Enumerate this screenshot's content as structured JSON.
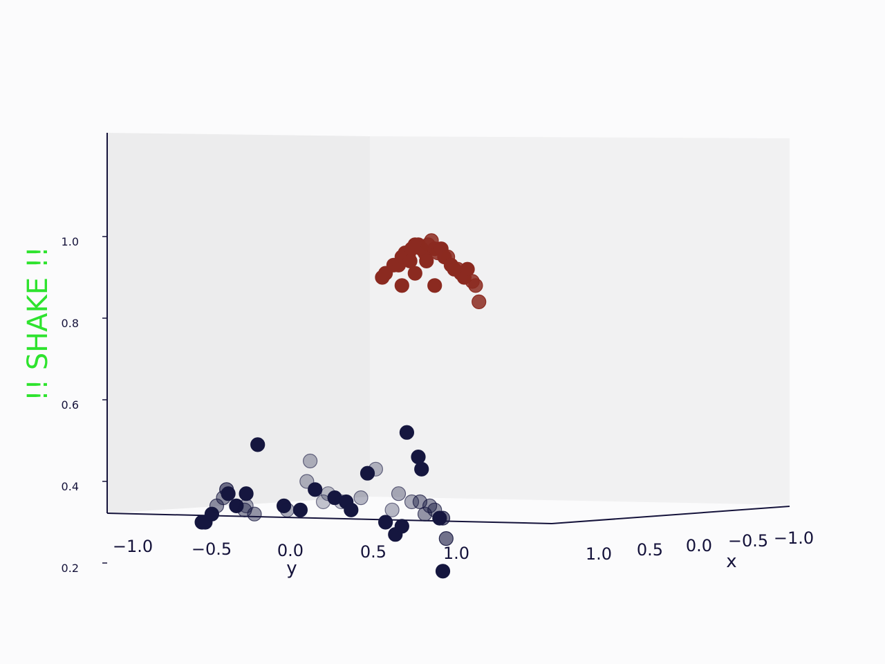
{
  "colors": {
    "background": "#fbfbfc",
    "pane": "#ededee",
    "axis": "#14123a",
    "label_overlay": "#2ee32e",
    "top_cluster": "#8b2a20",
    "bottom_cluster": "#15163f"
  },
  "chart_data": {
    "type": "scatter",
    "projection": "3d",
    "overlay_label": "!! SHAKE !!",
    "title": "",
    "xlabel": "x",
    "ylabel": "y",
    "zlabel": "",
    "x_ticks": [
      "1.0",
      "0.5",
      "0.0",
      "−0.5",
      "−1.0"
    ],
    "y_ticks": [
      "−1.0",
      "−0.5",
      "0.0",
      "0.5",
      "1.0"
    ],
    "z_ticks": [
      "0.2",
      "0.4",
      "0.6",
      "0.8",
      "1.0"
    ],
    "zlim": [
      0.12,
      1.05
    ],
    "grid": false,
    "series": [
      {
        "color": "#8b2a20",
        "points": [
          {
            "y": 0.05,
            "z": 0.9,
            "o": 1.0
          },
          {
            "y": 0.07,
            "z": 0.91,
            "o": 1.0
          },
          {
            "y": 0.12,
            "z": 0.93,
            "o": 1.0
          },
          {
            "y": 0.15,
            "z": 0.93,
            "o": 1.0
          },
          {
            "y": 0.17,
            "z": 0.95,
            "o": 1.0
          },
          {
            "y": 0.19,
            "z": 0.96,
            "o": 1.0
          },
          {
            "y": 0.21,
            "z": 0.95,
            "o": 1.0
          },
          {
            "y": 0.23,
            "z": 0.97,
            "o": 1.0
          },
          {
            "y": 0.25,
            "z": 0.98,
            "o": 1.0
          },
          {
            "y": 0.27,
            "z": 0.98,
            "o": 1.0
          },
          {
            "y": 0.29,
            "z": 0.97,
            "o": 1.0
          },
          {
            "y": 0.31,
            "z": 0.96,
            "o": 1.0
          },
          {
            "y": 0.33,
            "z": 0.98,
            "o": 0.85
          },
          {
            "y": 0.35,
            "z": 0.99,
            "o": 0.85
          },
          {
            "y": 0.37,
            "z": 0.97,
            "o": 1.0
          },
          {
            "y": 0.39,
            "z": 0.96,
            "o": 0.85
          },
          {
            "y": 0.41,
            "z": 0.97,
            "o": 1.0
          },
          {
            "y": 0.43,
            "z": 0.95,
            "o": 1.0
          },
          {
            "y": 0.45,
            "z": 0.95,
            "o": 0.85
          },
          {
            "y": 0.47,
            "z": 0.93,
            "o": 1.0
          },
          {
            "y": 0.49,
            "z": 0.92,
            "o": 1.0
          },
          {
            "y": 0.51,
            "z": 0.92,
            "o": 0.85
          },
          {
            "y": 0.53,
            "z": 0.91,
            "o": 1.0
          },
          {
            "y": 0.55,
            "z": 0.9,
            "o": 1.0
          },
          {
            "y": 0.57,
            "z": 0.92,
            "o": 1.0
          },
          {
            "y": 0.6,
            "z": 0.89,
            "o": 0.85
          },
          {
            "y": 0.62,
            "z": 0.88,
            "o": 0.85
          },
          {
            "y": 0.64,
            "z": 0.84,
            "o": 0.85
          },
          {
            "y": 0.17,
            "z": 0.88,
            "o": 1.0
          },
          {
            "y": 0.25,
            "z": 0.91,
            "o": 1.0
          },
          {
            "y": 0.37,
            "z": 0.88,
            "o": 1.0
          },
          {
            "y": 0.32,
            "z": 0.94,
            "o": 1.0
          },
          {
            "y": 0.22,
            "z": 0.94,
            "o": 1.0
          }
        ]
      },
      {
        "color": "#15163f",
        "points": [
          {
            "y": -1.05,
            "z": 0.3,
            "o": 1.0
          },
          {
            "y": -1.03,
            "z": 0.3,
            "o": 1.0
          },
          {
            "y": -0.99,
            "z": 0.32,
            "o": 1.0
          },
          {
            "y": -0.96,
            "z": 0.34,
            "o": 0.45
          },
          {
            "y": -0.92,
            "z": 0.36,
            "o": 0.45
          },
          {
            "y": -0.9,
            "z": 0.38,
            "o": 0.6
          },
          {
            "y": -0.89,
            "z": 0.37,
            "o": 1.0
          },
          {
            "y": -0.84,
            "z": 0.34,
            "o": 1.0
          },
          {
            "y": -0.79,
            "z": 0.33,
            "o": 0.45
          },
          {
            "y": -0.78,
            "z": 0.34,
            "o": 0.35
          },
          {
            "y": -0.78,
            "z": 0.37,
            "o": 1.0
          },
          {
            "y": -0.73,
            "z": 0.32,
            "o": 0.45
          },
          {
            "y": -0.71,
            "z": 0.49,
            "o": 1.0
          },
          {
            "y": -0.55,
            "z": 0.34,
            "o": 1.0
          },
          {
            "y": -0.53,
            "z": 0.33,
            "o": 0.35
          },
          {
            "y": -0.45,
            "z": 0.33,
            "o": 1.0
          },
          {
            "y": -0.41,
            "z": 0.4,
            "o": 0.3
          },
          {
            "y": -0.39,
            "z": 0.45,
            "o": 0.3
          },
          {
            "y": -0.36,
            "z": 0.38,
            "o": 1.0
          },
          {
            "y": -0.31,
            "z": 0.35,
            "o": 0.25
          },
          {
            "y": -0.28,
            "z": 0.37,
            "o": 0.25
          },
          {
            "y": -0.24,
            "z": 0.36,
            "o": 1.0
          },
          {
            "y": -0.2,
            "z": 0.35,
            "o": 0.25
          },
          {
            "y": -0.17,
            "z": 0.35,
            "o": 1.0
          },
          {
            "y": -0.14,
            "z": 0.33,
            "o": 1.0
          },
          {
            "y": -0.08,
            "z": 0.36,
            "o": 0.3
          },
          {
            "y": -0.04,
            "z": 0.42,
            "o": 1.0
          },
          {
            "y": 0.01,
            "z": 0.43,
            "o": 0.3
          },
          {
            "y": 0.07,
            "z": 0.3,
            "o": 1.0
          },
          {
            "y": 0.11,
            "z": 0.33,
            "o": 0.3
          },
          {
            "y": 0.13,
            "z": 0.27,
            "o": 1.0
          },
          {
            "y": 0.15,
            "z": 0.37,
            "o": 0.35
          },
          {
            "y": 0.17,
            "z": 0.29,
            "o": 1.0
          },
          {
            "y": 0.2,
            "z": 0.52,
            "o": 1.0
          },
          {
            "y": 0.23,
            "z": 0.35,
            "o": 0.35
          },
          {
            "y": 0.27,
            "z": 0.46,
            "o": 1.0
          },
          {
            "y": 0.28,
            "z": 0.35,
            "o": 0.45
          },
          {
            "y": 0.29,
            "z": 0.43,
            "o": 1.0
          },
          {
            "y": 0.31,
            "z": 0.32,
            "o": 0.45
          },
          {
            "y": 0.34,
            "z": 0.34,
            "o": 0.45
          },
          {
            "y": 0.37,
            "z": 0.33,
            "o": 0.45
          },
          {
            "y": 0.4,
            "z": 0.31,
            "o": 1.0
          },
          {
            "y": 0.42,
            "z": 0.31,
            "o": 0.6
          },
          {
            "y": 0.44,
            "z": 0.26,
            "o": 0.6
          },
          {
            "y": 0.42,
            "z": 0.18,
            "o": 1.0
          }
        ]
      }
    ]
  }
}
